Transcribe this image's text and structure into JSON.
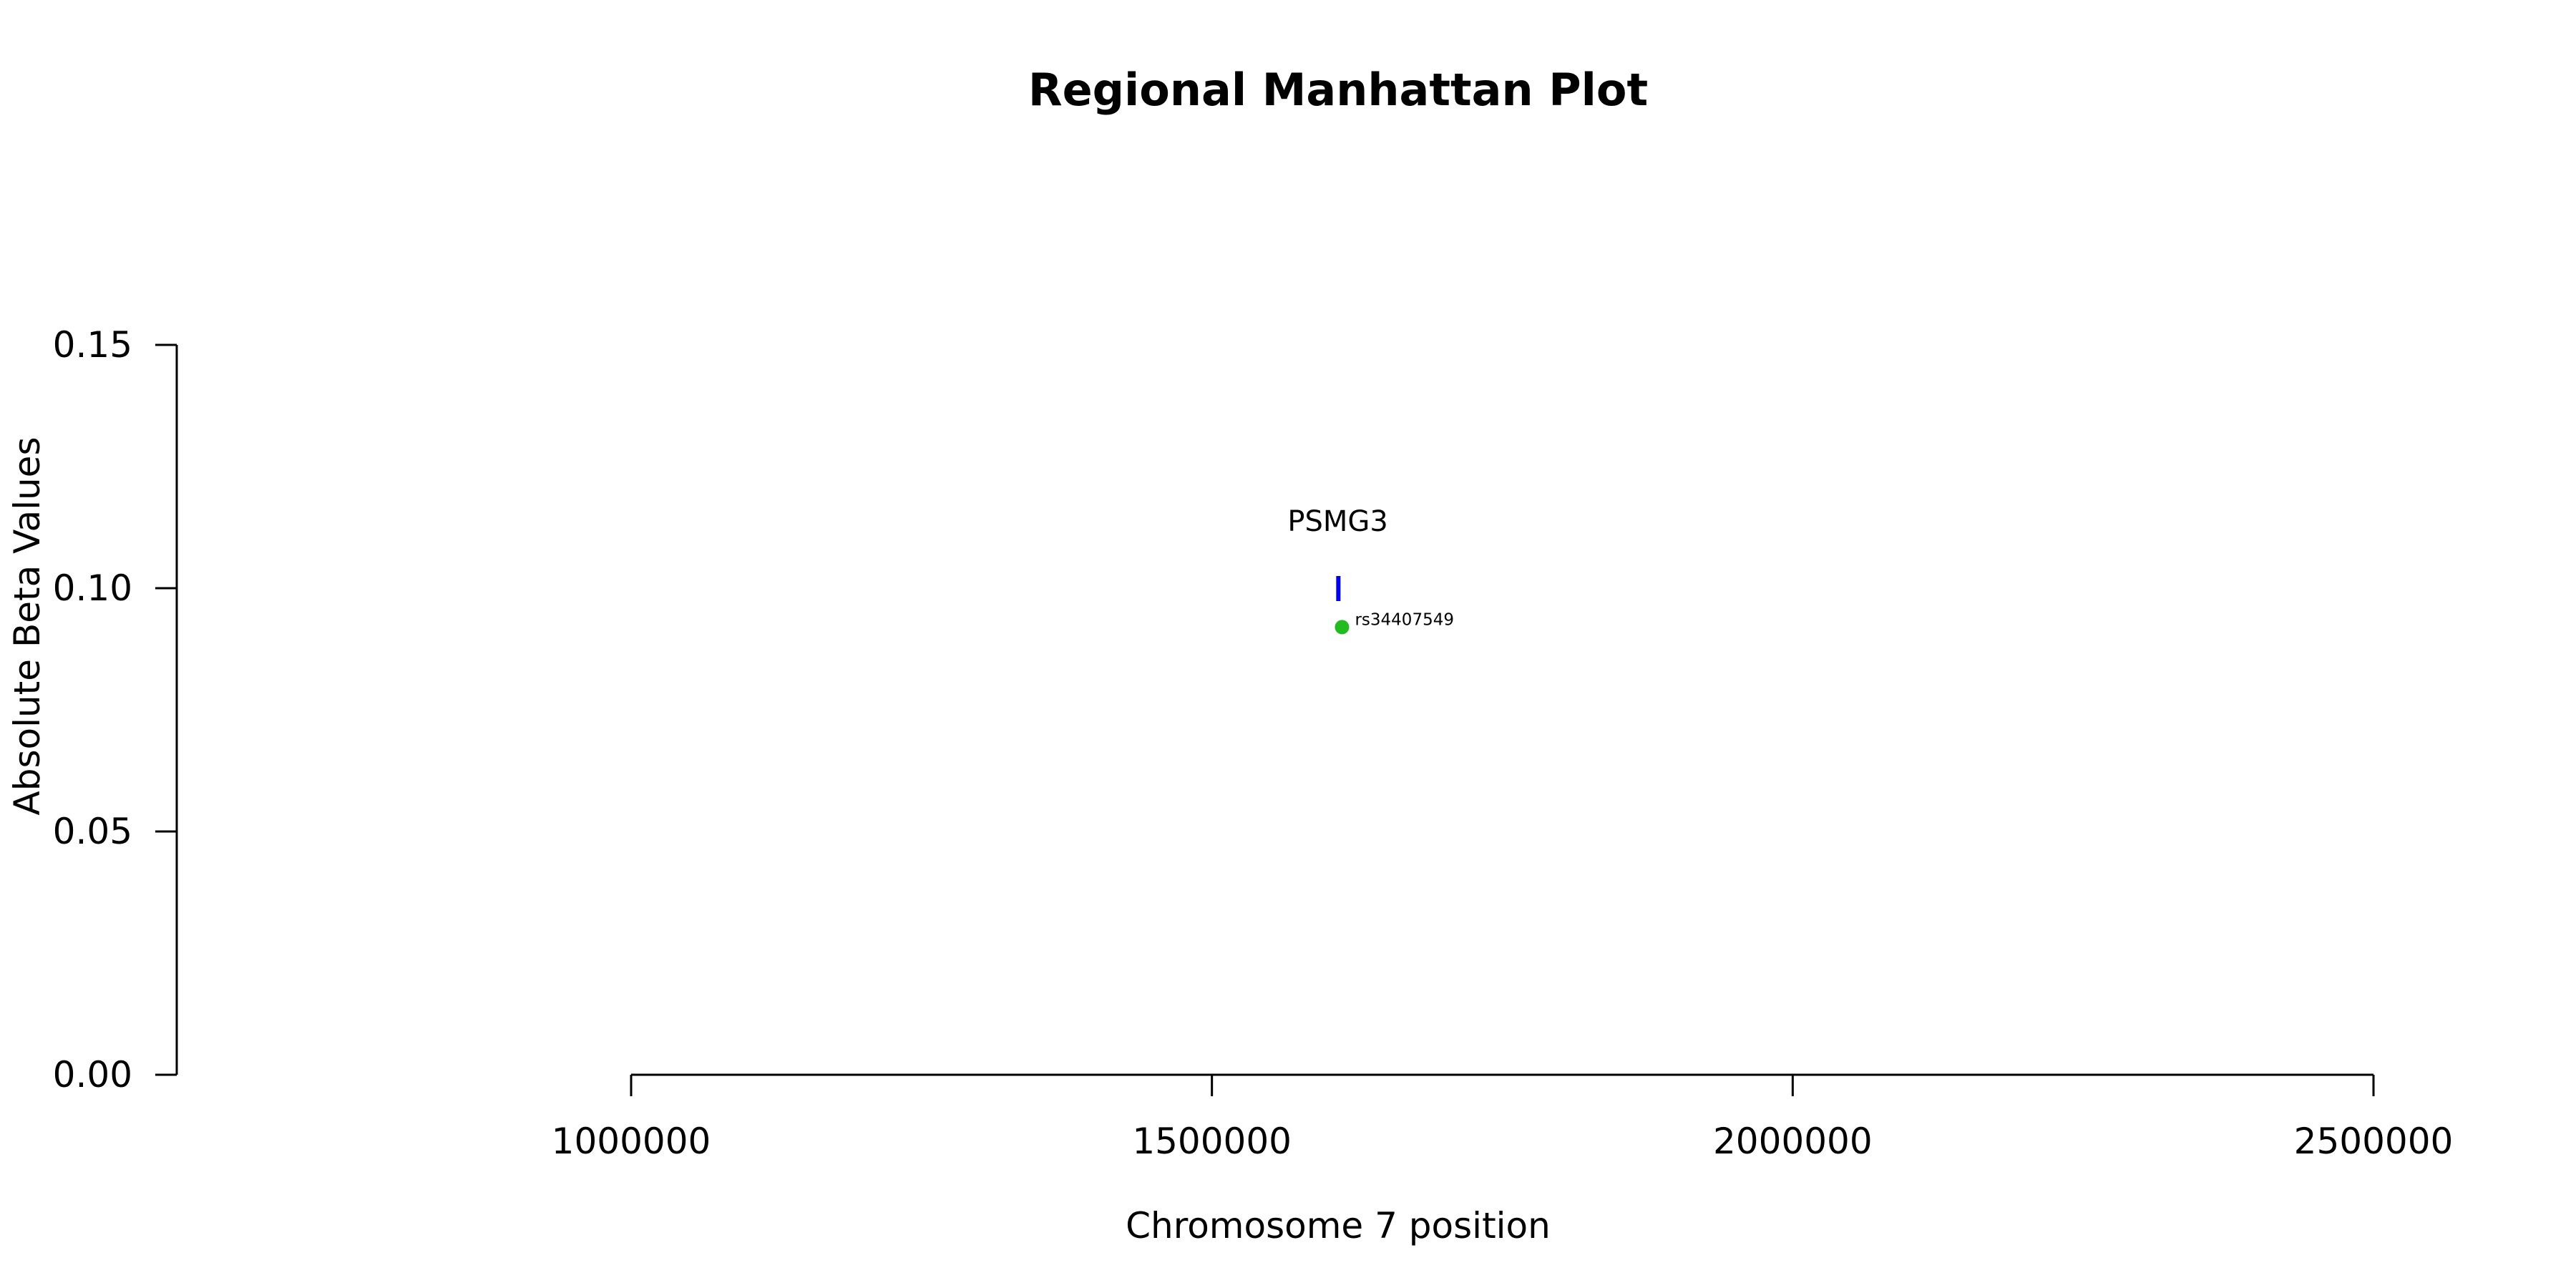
{
  "chart_data": {
    "type": "scatter",
    "title": "Regional Manhattan Plot",
    "xlabel": "Chromosome 7 position",
    "ylabel": "Absolute Beta Values",
    "xlim": [
      1000000,
      2500000
    ],
    "ylim": [
      0,
      0.15
    ],
    "x_ticks": [
      1000000,
      1500000,
      2000000,
      2500000
    ],
    "x_tick_labels": [
      "1000000",
      "1500000",
      "2000000",
      "2500000"
    ],
    "y_ticks": [
      0,
      0.05,
      0.1,
      0.15
    ],
    "y_tick_labels": [
      "0.00",
      "0.05",
      "0.10",
      "0.15"
    ],
    "grid": false,
    "points": [
      {
        "x": 1612000,
        "y": 0.092,
        "label": "rs34407549",
        "color": "#22bb22"
      }
    ],
    "genes": [
      {
        "name": "PSMG3",
        "start": 1607000,
        "end": 1609800,
        "y": 0.1,
        "color": "#0000ee"
      }
    ]
  }
}
